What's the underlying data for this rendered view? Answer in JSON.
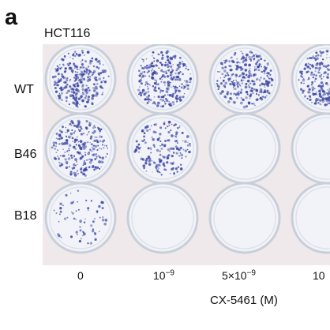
{
  "figure": {
    "panel_letter": "a",
    "cell_line": "HCT116",
    "rows": [
      "WT",
      "B46",
      "B18"
    ],
    "concentrations": [
      {
        "base": "0",
        "exp": ""
      },
      {
        "base": "10",
        "exp": "−9"
      },
      {
        "base": "5×10",
        "exp": "−9"
      },
      {
        "base": "10",
        "exp": ""
      }
    ],
    "x_axis_label": "CX-5461 (M)"
  },
  "colors": {
    "background": "#efe9ec",
    "well": "#f1f3f8",
    "well_ring": "#c8cfd8",
    "colony": "#3943a2"
  },
  "plates": [
    [
      0.9,
      0.9,
      0.95,
      0.95
    ],
    [
      0.8,
      0.55,
      0.0,
      0.0
    ],
    [
      0.22,
      0.0,
      0.0,
      0.0
    ]
  ]
}
